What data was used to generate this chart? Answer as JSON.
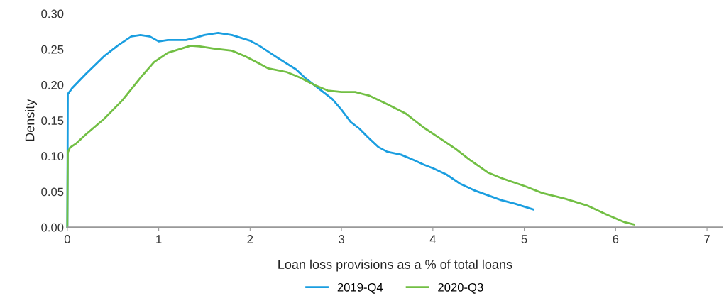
{
  "chart_data": {
    "type": "line",
    "xlabel": "Loan loss provisions as a % of total loans",
    "ylabel": "Density",
    "xlim": [
      0,
      7.17
    ],
    "xticks": [
      0,
      1,
      2,
      3,
      4,
      5,
      6,
      7
    ],
    "ylim": [
      0,
      0.3
    ],
    "yticks": [
      {
        "value": 0,
        "label": "0.00"
      },
      {
        "value": 0.05,
        "label": "0.05"
      },
      {
        "value": 0.1,
        "label": "0.10"
      },
      {
        "value": 0.15,
        "label": "0.15"
      },
      {
        "value": 0.2,
        "label": "0.20"
      },
      {
        "value": 0.25,
        "label": "0.25"
      },
      {
        "value": 0.3,
        "label": "0.30"
      }
    ],
    "grid": false,
    "legend": "bottom",
    "marker": "none",
    "line_style": "solid",
    "series": [
      {
        "name": "2019-Q4",
        "color": "#1a9ee0",
        "x": [
          0,
          0.005,
          0.05,
          0.2,
          0.4,
          0.55,
          0.7,
          0.8,
          0.9,
          1.0,
          1.1,
          1.3,
          1.4,
          1.5,
          1.65,
          1.8,
          2.0,
          2.1,
          2.3,
          2.5,
          2.6,
          2.75,
          2.9,
          3.0,
          3.1,
          3.2,
          3.3,
          3.4,
          3.5,
          3.65,
          3.8,
          3.9,
          4.0,
          4.15,
          4.3,
          4.45,
          4.6,
          4.75,
          4.9,
          5.1
        ],
        "values": [
          0,
          0.187,
          0.195,
          0.215,
          0.24,
          0.255,
          0.268,
          0.27,
          0.268,
          0.261,
          0.263,
          0.263,
          0.266,
          0.27,
          0.273,
          0.27,
          0.262,
          0.255,
          0.238,
          0.222,
          0.21,
          0.195,
          0.18,
          0.165,
          0.148,
          0.138,
          0.125,
          0.113,
          0.106,
          0.102,
          0.094,
          0.088,
          0.083,
          0.074,
          0.061,
          0.052,
          0.045,
          0.038,
          0.033,
          0.025
        ]
      },
      {
        "name": "2020-Q3",
        "color": "#72bf44",
        "x": [
          0,
          0.005,
          0.03,
          0.1,
          0.2,
          0.4,
          0.6,
          0.8,
          0.95,
          1.1,
          1.25,
          1.35,
          1.45,
          1.6,
          1.8,
          1.95,
          2.1,
          2.2,
          2.4,
          2.55,
          2.7,
          2.85,
          3.0,
          3.15,
          3.3,
          3.5,
          3.7,
          3.9,
          4.1,
          4.25,
          4.4,
          4.6,
          4.75,
          5.0,
          5.2,
          5.45,
          5.7,
          5.9,
          6.1,
          6.2
        ],
        "values": [
          0,
          0.105,
          0.112,
          0.118,
          0.13,
          0.152,
          0.178,
          0.21,
          0.232,
          0.245,
          0.251,
          0.255,
          0.254,
          0.251,
          0.248,
          0.24,
          0.23,
          0.223,
          0.218,
          0.21,
          0.2,
          0.192,
          0.19,
          0.19,
          0.185,
          0.173,
          0.16,
          0.14,
          0.123,
          0.11,
          0.095,
          0.077,
          0.069,
          0.058,
          0.048,
          0.04,
          0.03,
          0.018,
          0.007,
          0.004
        ]
      }
    ]
  }
}
